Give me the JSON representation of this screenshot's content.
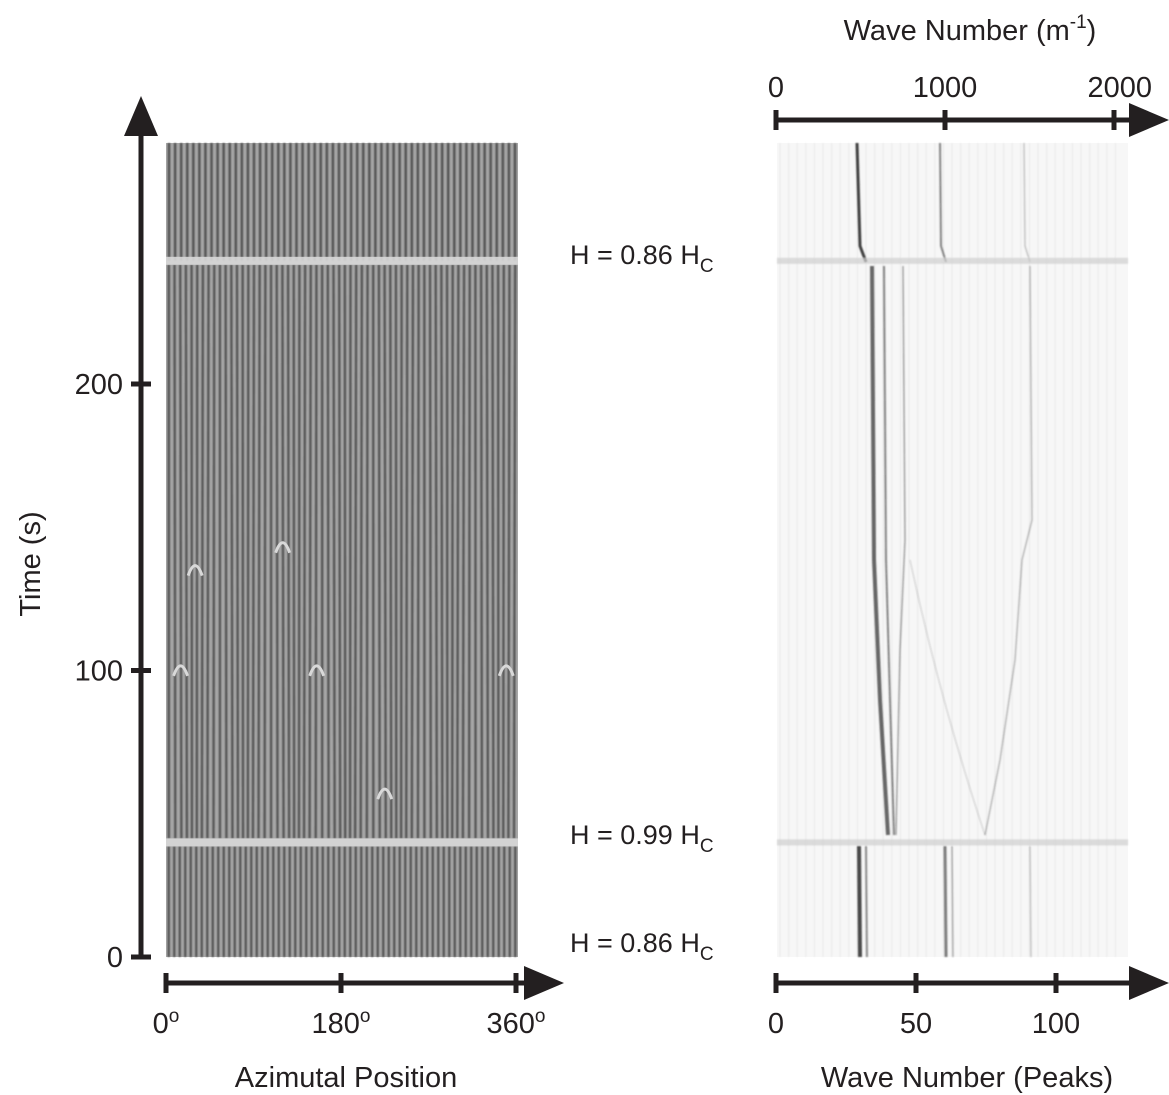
{
  "left_panel": {
    "y_axis": {
      "label": "Time (s)",
      "ticks": [
        {
          "value": 0,
          "label": "0"
        },
        {
          "value": 100,
          "label": "100"
        },
        {
          "value": 200,
          "label": "200"
        }
      ]
    },
    "x_axis": {
      "label": "Azimutal Position",
      "degree_symbol": "o",
      "ticks": [
        {
          "value": 0,
          "label": "0"
        },
        {
          "value": 180,
          "label": "180"
        },
        {
          "value": 360,
          "label": "360"
        }
      ]
    }
  },
  "annotations": [
    {
      "id": "field-top",
      "label_main": "H = 0.86 H",
      "subscript": "C",
      "time": 243
    },
    {
      "id": "field-middle",
      "label_main": "H = 0.99 H",
      "subscript": "C",
      "time": 40
    },
    {
      "id": "field-bottom",
      "label_main": "H = 0.86 H",
      "subscript": "C",
      "time": 4
    }
  ],
  "right_panel": {
    "top_axis": {
      "label_main": "Wave Number (m",
      "superscript": "-1",
      "label_close": ")",
      "ticks": [
        {
          "value": 0,
          "label": "0"
        },
        {
          "value": 1000,
          "label": "1000"
        },
        {
          "value": 2000,
          "label": "2000"
        }
      ]
    },
    "bottom_axis": {
      "label": "Wave Number (Peaks)",
      "ticks": [
        {
          "value": 0,
          "label": "0"
        },
        {
          "value": 50,
          "label": "50"
        },
        {
          "value": 100,
          "label": "100"
        }
      ]
    }
  },
  "colors": {
    "axis": "#231f20",
    "spatiotemporal_background": "#a7a7a7",
    "spatiotemporal_stripe": "#3a3a3a",
    "spectrum_background": "#f7f7f7",
    "spectrum_peak": "#2b2b2b"
  }
}
